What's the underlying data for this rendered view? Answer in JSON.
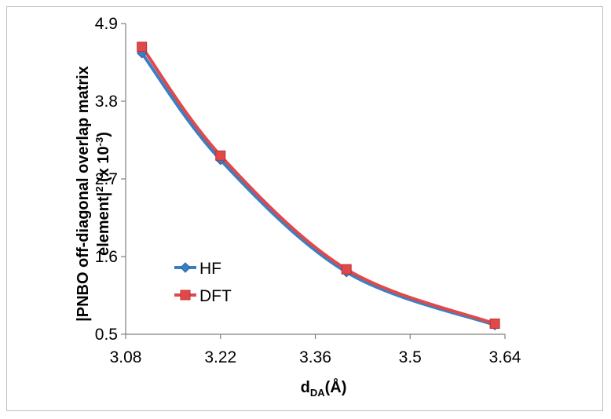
{
  "chart_data": {
    "type": "line",
    "title": "",
    "xlabel": {
      "main": "d",
      "sub": "DA",
      "unit": "(Å)"
    },
    "ylabel": {
      "line1": "|PNBO off-diagonal overlap matrix",
      "line2": "element|",
      "sup2": "2",
      "mid": " (x 10",
      "sup3": "-3",
      "end": ")"
    },
    "xlim": [
      3.08,
      3.64
    ],
    "ylim": [
      0.5,
      4.9
    ],
    "xticks": [
      "3.08",
      "3.22",
      "3.36",
      "3.5",
      "3.64"
    ],
    "yticks": [
      "0.5",
      "1.6",
      "2.7",
      "3.8",
      "4.9"
    ],
    "grid": false,
    "legend_position": "lower-left",
    "series": [
      {
        "name": "HF",
        "color": "#3a7fc4",
        "marker": "diamond",
        "x": [
          3.104,
          3.22,
          3.406,
          3.625
        ],
        "y": [
          4.48,
          2.97,
          1.38,
          0.63
        ]
      },
      {
        "name": "DFT",
        "color": "#e0494a",
        "marker": "square",
        "x": [
          3.104,
          3.22,
          3.406,
          3.625
        ],
        "y": [
          4.57,
          3.03,
          1.42,
          0.65
        ]
      }
    ]
  }
}
